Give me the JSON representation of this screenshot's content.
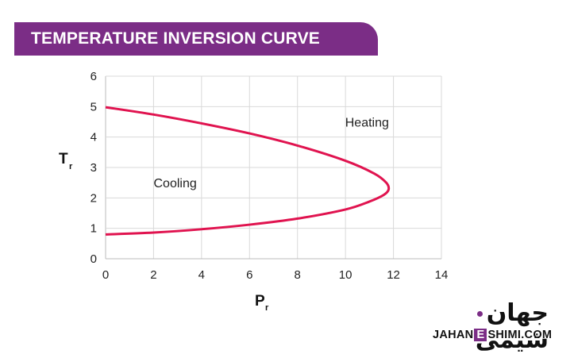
{
  "banner": {
    "title": "TEMPERATURE INVERSION CURVE"
  },
  "colors": {
    "banner": "#7b2d86",
    "curve": "#e0134f",
    "grid": "#d9d9d9"
  },
  "chart_data": {
    "type": "line",
    "title": "TEMPERATURE INVERSION CURVE",
    "xlabel": "P",
    "xlabel_subscript": "r",
    "ylabel": "T",
    "ylabel_subscript": "r",
    "xlim": [
      0,
      14
    ],
    "ylim": [
      0,
      6
    ],
    "xticks": [
      "0",
      "2",
      "4",
      "6",
      "8",
      "10",
      "12",
      "14"
    ],
    "yticks": [
      "0",
      "1",
      "2",
      "3",
      "4",
      "5",
      "6"
    ],
    "grid": true,
    "annotations": [
      {
        "text": "Heating",
        "x": 10.9,
        "y": 4.5
      },
      {
        "text": "Cooling",
        "x": 2.9,
        "y": 2.5
      }
    ],
    "series": [
      {
        "points": [
          [
            0,
            0.8
          ],
          [
            2,
            0.86
          ],
          [
            4,
            0.97
          ],
          [
            6,
            1.12
          ],
          [
            8,
            1.32
          ],
          [
            10,
            1.62
          ],
          [
            11,
            1.88
          ],
          [
            11.6,
            2.1
          ],
          [
            11.8,
            2.28
          ],
          [
            11.7,
            2.5
          ],
          [
            11.2,
            2.8
          ],
          [
            10,
            3.22
          ],
          [
            8,
            3.72
          ],
          [
            6,
            4.12
          ],
          [
            4,
            4.45
          ],
          [
            2,
            4.74
          ],
          [
            0,
            4.98
          ]
        ]
      }
    ]
  },
  "logo": {
    "persian": "جهان شیمی",
    "latin_left": "JAHAN",
    "latin_e": "E",
    "latin_right": "SHIMI.COM"
  }
}
